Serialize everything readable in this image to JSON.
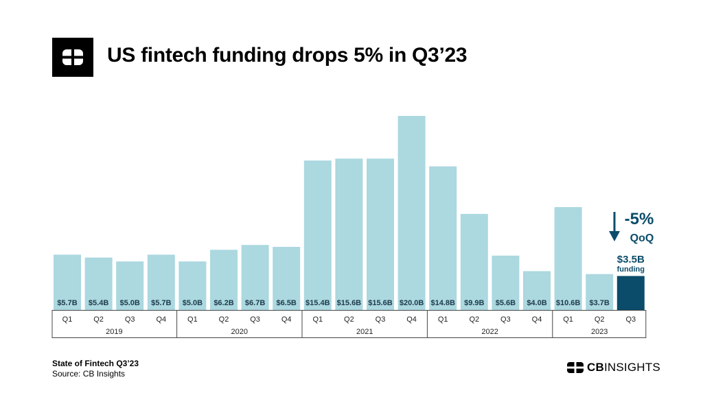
{
  "header": {
    "title": "US fintech funding drops 5% in Q3’23",
    "logo_icon": "cb-logo-icon"
  },
  "chart_data": {
    "type": "bar",
    "title": "US fintech funding drops 5% in Q3’23",
    "xlabel": "",
    "ylabel": "",
    "ylim": [
      0,
      20
    ],
    "grid": false,
    "categories": [
      "Q1",
      "Q2",
      "Q3",
      "Q4",
      "Q1",
      "Q2",
      "Q3",
      "Q4",
      "Q1",
      "Q2",
      "Q3",
      "Q4",
      "Q1",
      "Q2",
      "Q3",
      "Q4",
      "Q1",
      "Q2",
      "Q3"
    ],
    "years": [
      {
        "label": "2019",
        "count": 4
      },
      {
        "label": "2020",
        "count": 4
      },
      {
        "label": "2021",
        "count": 4
      },
      {
        "label": "2022",
        "count": 4
      },
      {
        "label": "2023",
        "count": 3
      }
    ],
    "values": [
      5.7,
      5.4,
      5.0,
      5.7,
      5.0,
      6.2,
      6.7,
      6.5,
      15.4,
      15.6,
      15.6,
      20.0,
      14.8,
      9.9,
      5.6,
      4.0,
      10.6,
      3.7,
      3.5
    ],
    "value_labels": [
      "$5.7B",
      "$5.4B",
      "$5.0B",
      "$5.7B",
      "$5.0B",
      "$6.2B",
      "$6.7B",
      "$6.5B",
      "$15.4B",
      "$15.6B",
      "$15.6B",
      "$20.0B",
      "$14.8B",
      "$9.9B",
      "$5.6B",
      "$4.0B",
      "$10.6B",
      "$3.7B",
      ""
    ],
    "colors": {
      "default": "#acd8e0",
      "highlight": "#0b4c6a",
      "value_label": "#1c3a4a"
    },
    "highlight_index": 18,
    "annotation": {
      "change": "-5%",
      "change_label": "QoQ",
      "value": "$3.5B",
      "value_label": "funding",
      "arrow_icon": "arrow-down-icon",
      "color": "#0b4c6a"
    }
  },
  "footer": {
    "title": "State of Fintech Q3’23",
    "source": "Source: CB Insights"
  },
  "brand": {
    "name_bold": "CB",
    "name_rest": "INSIGHTS",
    "icon": "cb-insights-logo-icon"
  }
}
